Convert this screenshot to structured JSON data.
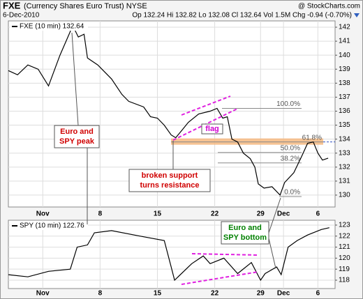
{
  "header": {
    "symbol": "FXE",
    "name": "(Currency Shares Euro Trust) NYSE",
    "date": "6-Dec-2010",
    "quote": "Op 132.24 Hi 132.82 Lo 132.08 Cl 132.64 Vol 1.5M Chg -0.94 (-0.70%)",
    "source": "@ StockCharts.com"
  },
  "chart_data": [
    {
      "type": "line",
      "legend": "FXE (10 min) 132.64",
      "color": "#000000",
      "grid": true,
      "x": [
        -3.0,
        -2.2,
        -1.3,
        -0.4,
        0.5,
        1.5,
        2.4,
        2.5,
        3.1,
        3.6,
        3.9,
        4.8,
        6.0,
        6.9,
        7.5,
        8.8,
        9.4,
        10.0,
        10.6,
        11.2,
        11.6,
        12.1,
        12.7,
        13.6,
        14.6,
        15.2,
        15.7,
        16.1,
        16.5,
        17.0,
        17.5,
        18.1,
        18.5,
        18.8,
        19.3,
        20.0,
        20.7,
        21.1,
        21.9,
        22.6,
        23.1,
        23.6,
        24.0,
        24.4,
        24.9
      ],
      "values": [
        138.9,
        138.6,
        139.3,
        139.0,
        137.8,
        140.0,
        141.7,
        142.3,
        141.3,
        141.5,
        139.8,
        139.3,
        138.3,
        137.2,
        136.7,
        136.3,
        135.6,
        135.5,
        135.0,
        134.3,
        134.1,
        134.6,
        135.2,
        135.8,
        136.0,
        136.2,
        135.5,
        135.6,
        134.0,
        133.8,
        133.0,
        132.6,
        132.0,
        130.8,
        130.5,
        130.6,
        130.0,
        130.9,
        131.6,
        132.8,
        133.7,
        133.8,
        133.0,
        132.5,
        132.64
      ],
      "xlim": [
        -3,
        25.5
      ],
      "xticks": [
        {
          "value": 0,
          "label": "Nov"
        },
        {
          "value": 5,
          "label": "8"
        },
        {
          "value": 10,
          "label": "15"
        },
        {
          "value": 15,
          "label": "22"
        },
        {
          "value": 19,
          "label": "29"
        },
        {
          "value": 21,
          "label": "Dec"
        },
        {
          "value": 24,
          "label": "6"
        }
      ],
      "ylim": [
        129.15,
        142.45
      ],
      "yticks": [
        130,
        131,
        132,
        133,
        134,
        135,
        136,
        137,
        138,
        139,
        140,
        141,
        142
      ],
      "fib_levels": [
        {
          "value": 136.2,
          "label": "100.0%"
        },
        {
          "value": 133.8,
          "label": "61.8%"
        },
        {
          "value": 133.05,
          "label": "50.0%"
        },
        {
          "value": 132.3,
          "label": "38.2%"
        },
        {
          "value": 129.9,
          "label": "0.0%"
        }
      ],
      "resistance_zone": [
        133.6,
        134.05
      ]
    },
    {
      "type": "line",
      "legend": "SPY (10 min) 122.76",
      "color": "#000000",
      "grid": true,
      "x": [
        -3.0,
        -1.3,
        0.5,
        2.4,
        3.0,
        3.9,
        4.5,
        6.0,
        8.5,
        10.6,
        11.2,
        11.5,
        13.0,
        14.0,
        14.6,
        15.8,
        17.0,
        18.2,
        19.0,
        19.4,
        20.4,
        20.8,
        21.4,
        22.2,
        23.1,
        24.3,
        25.0
      ],
      "values": [
        118.5,
        118.3,
        118.8,
        119.0,
        121.0,
        121.2,
        122.3,
        122.5,
        122.0,
        121.6,
        119.2,
        118.0,
        119.5,
        120.2,
        119.5,
        120.0,
        118.6,
        119.6,
        118.0,
        118.6,
        119.2,
        118.5,
        121.0,
        121.6,
        122.1,
        122.6,
        122.76
      ],
      "xlim": [
        -3,
        25.5
      ],
      "xticks": [
        {
          "value": 0,
          "label": "Nov"
        },
        {
          "value": 5,
          "label": "8"
        },
        {
          "value": 10,
          "label": "15"
        },
        {
          "value": 15,
          "label": "22"
        },
        {
          "value": 19,
          "label": "29"
        },
        {
          "value": 21,
          "label": "Dec"
        },
        {
          "value": 24,
          "label": "6"
        }
      ],
      "ylim": [
        117.24,
        123.44
      ],
      "yticks": [
        118,
        119,
        120,
        121,
        122,
        123
      ]
    }
  ],
  "annotations": {
    "peak": [
      "Euro and",
      "SPY peak"
    ],
    "support": [
      "broken support",
      "turns resistance"
    ],
    "flag": "flag",
    "bottom": [
      "Euro and",
      "SPY bottom"
    ]
  }
}
